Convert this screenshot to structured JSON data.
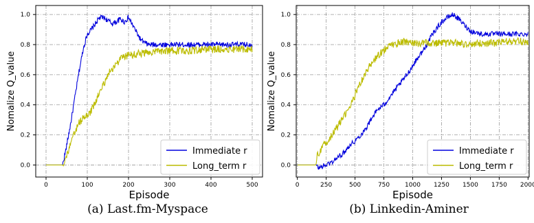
{
  "chart_data": [
    {
      "type": "line",
      "caption": "(a) Last.fm-Myspace",
      "xlabel": "Episode",
      "ylabel": "Nomalize Q_value",
      "xlim": [
        -25,
        525
      ],
      "ylim": [
        -0.08,
        1.06
      ],
      "xticks": [
        0,
        100,
        200,
        300,
        400,
        500
      ],
      "yticks": [
        0.0,
        0.2,
        0.4,
        0.6,
        0.8,
        1.0
      ],
      "grid": true,
      "legend_position": "bottom-right",
      "series": [
        {
          "name": "Immediate r",
          "color": "#0000dd",
          "x": [
            0,
            40,
            48,
            60,
            70,
            80,
            90,
            100,
            110,
            120,
            130,
            140,
            150,
            160,
            170,
            180,
            190,
            200,
            210,
            220,
            230,
            240,
            250,
            300,
            350,
            400,
            450,
            500
          ],
          "y": [
            0.0,
            0.0,
            0.1,
            0.28,
            0.45,
            0.62,
            0.77,
            0.87,
            0.9,
            0.94,
            0.98,
            0.98,
            0.96,
            0.94,
            0.95,
            0.97,
            0.95,
            0.98,
            0.93,
            0.88,
            0.83,
            0.81,
            0.8,
            0.8,
            0.8,
            0.8,
            0.8,
            0.8
          ]
        },
        {
          "name": "Long_term r",
          "color": "#bcbc00",
          "x": [
            0,
            40,
            50,
            60,
            70,
            80,
            90,
            100,
            110,
            120,
            130,
            140,
            150,
            160,
            170,
            180,
            190,
            200,
            225,
            250,
            300,
            350,
            400,
            450,
            500
          ],
          "y": [
            0.0,
            0.0,
            0.06,
            0.14,
            0.22,
            0.28,
            0.31,
            0.33,
            0.36,
            0.42,
            0.48,
            0.54,
            0.6,
            0.64,
            0.67,
            0.7,
            0.72,
            0.73,
            0.74,
            0.75,
            0.76,
            0.76,
            0.77,
            0.77,
            0.77
          ]
        }
      ]
    },
    {
      "type": "line",
      "caption": "(b) Linkedin-Aminer",
      "xlabel": "Episode",
      "ylabel": "Nomalize Q_value",
      "xlim": [
        -10,
        2010
      ],
      "ylim": [
        -0.08,
        1.06
      ],
      "xticks": [
        0,
        250,
        500,
        750,
        1000,
        1250,
        1500,
        1750,
        2000
      ],
      "yticks": [
        0.0,
        0.2,
        0.4,
        0.6,
        0.8,
        1.0
      ],
      "grid": true,
      "legend_position": "bottom-right",
      "series": [
        {
          "name": "Immediate r",
          "color": "#0000dd",
          "x": [
            0,
            160,
            180,
            250,
            300,
            350,
            400,
            450,
            500,
            550,
            600,
            650,
            700,
            750,
            800,
            850,
            900,
            950,
            1000,
            1050,
            1100,
            1150,
            1200,
            1250,
            1300,
            1350,
            1400,
            1450,
            1500,
            1600,
            1700,
            1800,
            1900,
            2000
          ],
          "y": [
            0.0,
            0.0,
            -0.02,
            0.0,
            0.02,
            0.05,
            0.08,
            0.13,
            0.16,
            0.2,
            0.25,
            0.32,
            0.37,
            0.4,
            0.45,
            0.5,
            0.55,
            0.6,
            0.66,
            0.72,
            0.77,
            0.84,
            0.9,
            0.95,
            0.98,
            1.0,
            0.97,
            0.93,
            0.89,
            0.87,
            0.87,
            0.87,
            0.87,
            0.87
          ]
        },
        {
          "name": "Long_term r",
          "color": "#bcbc00",
          "x": [
            0,
            160,
            170,
            220,
            270,
            320,
            370,
            420,
            470,
            520,
            570,
            620,
            670,
            720,
            770,
            820,
            870,
            920,
            1000,
            1100,
            1200,
            1300,
            1400,
            1500,
            1600,
            1700,
            1800,
            1900,
            2000
          ],
          "y": [
            0.0,
            0.0,
            0.06,
            0.12,
            0.17,
            0.22,
            0.28,
            0.34,
            0.41,
            0.5,
            0.58,
            0.65,
            0.7,
            0.74,
            0.78,
            0.8,
            0.81,
            0.82,
            0.81,
            0.81,
            0.81,
            0.81,
            0.81,
            0.8,
            0.81,
            0.81,
            0.82,
            0.82,
            0.82
          ]
        }
      ]
    }
  ]
}
